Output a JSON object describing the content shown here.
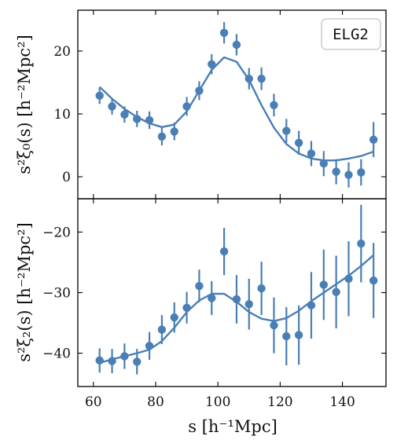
{
  "chart_data": {
    "type": "scatter",
    "shared_x_label": "s [h⁻¹Mpc]",
    "xlim": [
      55,
      154
    ],
    "xticks": [
      60,
      80,
      100,
      120,
      140
    ],
    "colors": {
      "series": "#4a7fb5",
      "axes": "#000000"
    },
    "legend": {
      "text": "ELG2",
      "placement": "top-right"
    },
    "panels": [
      {
        "ylabel": "s²ξ₀(s) [h⁻²Mpc²]",
        "ylim": [
          -3.5,
          26.5
        ],
        "yticks": [
          0,
          10,
          20
        ],
        "data": {
          "x": [
            62,
            66,
            70,
            74,
            78,
            82,
            86,
            90,
            94,
            98,
            102,
            106,
            110,
            114,
            118,
            122,
            126,
            130,
            134,
            138,
            142,
            146,
            150
          ],
          "y": [
            12.9,
            11.2,
            9.9,
            9.2,
            9.0,
            6.4,
            7.2,
            11.2,
            13.7,
            17.9,
            22.9,
            21.0,
            15.6,
            15.6,
            11.4,
            7.3,
            5.4,
            3.7,
            2.1,
            0.8,
            0.3,
            0.7,
            5.9
          ],
          "err": [
            1.3,
            1.3,
            1.3,
            1.3,
            1.4,
            1.4,
            1.4,
            1.5,
            1.5,
            1.6,
            1.7,
            1.7,
            1.7,
            1.8,
            1.8,
            1.9,
            1.9,
            2.0,
            2.0,
            2.0,
            2.0,
            2.1,
            2.8
          ]
        },
        "model": {
          "x": [
            62,
            66,
            70,
            74,
            78,
            82,
            86,
            90,
            94,
            98,
            102,
            106,
            110,
            114,
            118,
            122,
            126,
            130,
            134,
            138,
            142,
            146,
            150
          ],
          "y": [
            14.3,
            12.4,
            10.8,
            9.5,
            8.5,
            7.9,
            8.3,
            10.4,
            13.7,
            17.0,
            19.0,
            18.3,
            15.4,
            11.4,
            7.8,
            5.2,
            3.7,
            2.9,
            2.6,
            2.6,
            2.9,
            3.3,
            4.0
          ]
        }
      },
      {
        "ylabel": "s²ξ₂(s) [h⁻²Mpc²]",
        "ylim": [
          -45.5,
          -14.5
        ],
        "yticks": [
          -40,
          -30,
          -20
        ],
        "data": {
          "x": [
            62,
            66,
            70,
            74,
            78,
            82,
            86,
            90,
            94,
            98,
            102,
            106,
            110,
            114,
            118,
            122,
            126,
            130,
            134,
            138,
            142,
            146,
            150
          ],
          "y": [
            -41.2,
            -41.3,
            -40.5,
            -41.4,
            -38.8,
            -36.1,
            -34.1,
            -32.5,
            -28.9,
            -30.9,
            -23.2,
            -31.1,
            -31.9,
            -29.3,
            -35.4,
            -37.2,
            -37.0,
            -32.1,
            -28.7,
            -29.9,
            -27.7,
            -21.9,
            -28.0
          ],
          "err": [
            2.0,
            2.0,
            2.1,
            2.1,
            2.3,
            2.4,
            2.5,
            2.6,
            2.7,
            2.8,
            3.9,
            4.0,
            4.2,
            4.4,
            4.6,
            4.8,
            4.9,
            5.5,
            5.8,
            6.0,
            6.2,
            6.4,
            6.2
          ]
        },
        "model": {
          "x": [
            62,
            66,
            70,
            74,
            78,
            82,
            86,
            90,
            94,
            98,
            102,
            106,
            110,
            114,
            118,
            122,
            126,
            130,
            134,
            138,
            142,
            146,
            150
          ],
          "y": [
            -41.6,
            -41.0,
            -40.5,
            -40.0,
            -39.4,
            -38.0,
            -35.8,
            -33.2,
            -31.3,
            -30.2,
            -30.2,
            -31.5,
            -33.2,
            -34.3,
            -34.7,
            -34.2,
            -33.0,
            -31.4,
            -30.0,
            -28.6,
            -27.2,
            -25.6,
            -23.8
          ]
        }
      }
    ]
  }
}
